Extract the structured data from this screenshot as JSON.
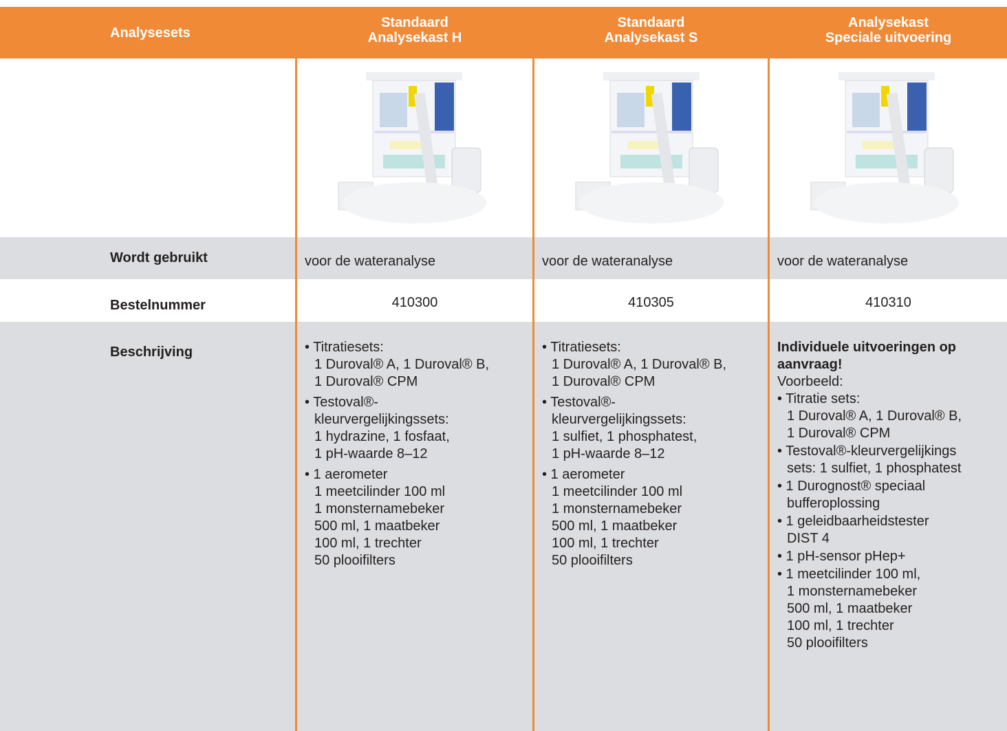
{
  "header": {
    "label": "Analysesets",
    "columns": [
      [
        "Standaard",
        "Analysekast H"
      ],
      [
        "Standaard",
        "Analysekast S"
      ],
      [
        "Analysekast",
        "Speciale uitvoering"
      ]
    ]
  },
  "rows": {
    "use": {
      "label": "Wordt gebruikt",
      "cells": [
        "voor de wateranalyse",
        "voor de wateranalyse",
        "voor de wateranalyse"
      ]
    },
    "order": {
      "label": "Bestelnummer",
      "cells": [
        "410300",
        "410305",
        "410310"
      ]
    },
    "description": {
      "label": "Beschrijving",
      "cells": [
        {
          "items": [
            [
              "• Titratiesets:",
              "1 Duroval® A, 1 Duroval® B,",
              "1 Duroval® CPM"
            ],
            [
              "• Testoval®-",
              "kleurvergelijkingssets:",
              "1 hydrazine, 1 fosfaat,",
              "1 pH-waarde 8–12"
            ],
            [
              "• 1 aerometer",
              "1 meetcilinder 100 ml",
              "1 monsternamebeker",
              "500 ml, 1 maatbeker",
              "100 ml, 1 trechter",
              "50 plooifilters"
            ]
          ]
        },
        {
          "items": [
            [
              "• Titratiesets:",
              "1 Duroval® A, 1 Duroval® B,",
              "1 Duroval® CPM"
            ],
            [
              "• Testoval®-",
              "kleurvergelijkingssets:",
              "1 sulfiet, 1 phosphatest,",
              "1 pH-waarde 8–12"
            ],
            [
              "• 1 aerometer",
              "1 meetcilinder 100 ml",
              "1 monsternamebeker",
              "500 ml, 1 maatbeker",
              "100 ml, 1 trechter",
              "50 plooifilters"
            ]
          ]
        },
        {
          "bold": [
            "Individuele uitvoeringen op",
            "aanvraag!"
          ],
          "intro": "Voorbeeld:",
          "items": [
            [
              "• Titratie sets:",
              "1 Duroval® A, 1 Duroval® B,",
              "1 Duroval® CPM"
            ],
            [
              "• Testoval®-kleurvergelijkings",
              "sets: 1 sulfiet, 1 phosphatest"
            ],
            [
              "• 1 Durognost® speciaal",
              "bufferoplossing"
            ],
            [
              "• 1 geleidbaarheidstester",
              "DIST 4"
            ],
            [
              "• 1 pH-sensor pHep+"
            ],
            [
              "• 1 meetcilinder 100 ml,",
              "1 monsternamebeker",
              "500 ml, 1 maatbeker",
              "100 ml, 1 trechter",
              "50 plooifilters"
            ]
          ]
        }
      ]
    }
  }
}
